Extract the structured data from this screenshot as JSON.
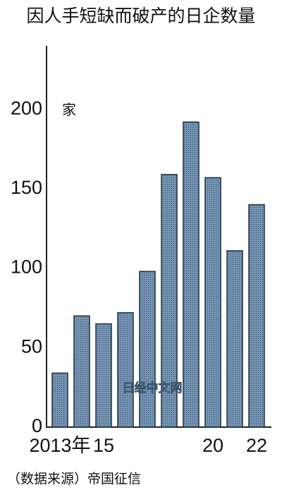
{
  "chart_data": {
    "type": "bar",
    "title": "因人手短缺而破产的日企数量",
    "unit": "家",
    "categories": [
      "2013年",
      null,
      "15",
      null,
      null,
      null,
      null,
      "20",
      null,
      "22"
    ],
    "values": [
      34,
      70,
      65,
      72,
      98,
      159,
      192,
      157,
      111,
      140
    ],
    "color": "#6787a6",
    "ylim": [
      0,
      240
    ],
    "yticks": [
      0,
      50,
      100,
      150,
      200
    ],
    "grid": false,
    "watermark": "日经中文网",
    "source": "（数据来源）帝国征信"
  }
}
